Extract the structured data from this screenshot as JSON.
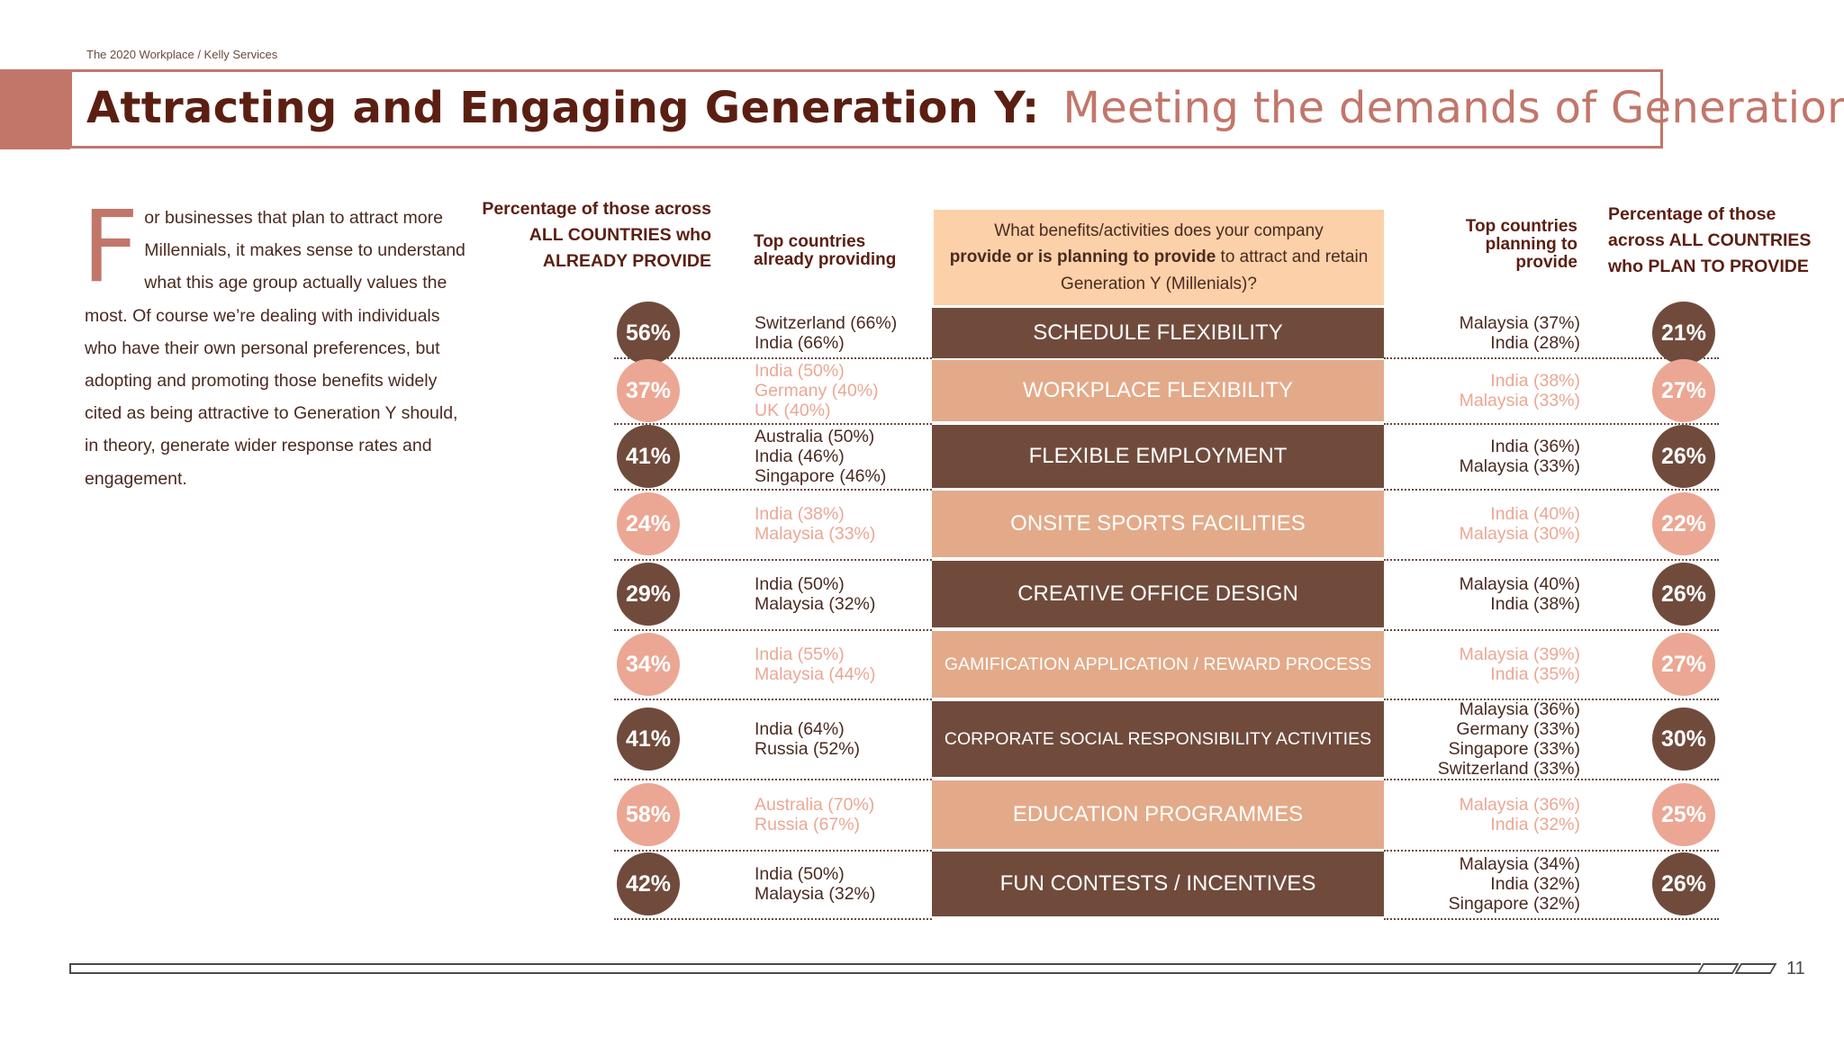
{
  "breadcrumb": "The 2020 Workplace  / Kelly Services",
  "header": {
    "title": "Attracting and Engaging Generation Y:",
    "subtitle": "Meeting the demands of Generation Y"
  },
  "intro": {
    "dropcap": "F",
    "text": "or businesses that plan to attract more Millennials, it makes sense to understand what this age group actually values the most. Of course we’re dealing with individuals who have their own personal preferences, but adopting and promoting those benefits widely cited as being attractive to Generation Y should, in theory, generate wider response rates and engagement."
  },
  "columns": {
    "already_pct": [
      "Percentage of those across",
      "ALL COUNTRIES  who",
      "ALREADY PROVIDE"
    ],
    "already_countries": [
      "Top countries",
      "already providing"
    ],
    "question": {
      "pre": "What benefits/activities does your company",
      "bold": "provide or is planning to provide",
      "post": " to attract and retain Generation Y (Millenials)?"
    },
    "plan_countries": [
      "Top countries",
      "planning to",
      "provide"
    ],
    "plan_pct": [
      "Percentage of those",
      "across ALL COUNTRIES",
      "who PLAN TO PROVIDE"
    ]
  },
  "colors": {
    "dark": "#704b3c",
    "light": "#e3aa89",
    "circle_light": "#eba794",
    "accent": "#c2766a",
    "question_bg": "#fcd0a8"
  },
  "rows": [
    {
      "benefit": "SCHEDULE FLEXIBILITY",
      "tone": "dark",
      "already": "56%",
      "already_countries": [
        "Switzerland (66%)",
        "India (66%)"
      ],
      "plan": "21%",
      "plan_countries": [
        "Malaysia (37%)",
        "India (28%)"
      ]
    },
    {
      "benefit": "WORKPLACE FLEXIBILITY",
      "tone": "light",
      "already": "37%",
      "already_countries": [
        "India (50%)",
        "Germany (40%)",
        "UK (40%)"
      ],
      "plan": "27%",
      "plan_countries": [
        "India (38%)",
        "Malaysia (33%)"
      ]
    },
    {
      "benefit": "FLEXIBLE EMPLOYMENT",
      "tone": "dark",
      "already": "41%",
      "already_countries": [
        "Australia (50%)",
        "India (46%)",
        "Singapore (46%)"
      ],
      "plan": "26%",
      "plan_countries": [
        "India (36%)",
        "Malaysia (33%)"
      ]
    },
    {
      "benefit": "ONSITE SPORTS FACILITIES",
      "tone": "light",
      "already": "24%",
      "already_countries": [
        "India (38%)",
        "Malaysia (33%)"
      ],
      "plan": "22%",
      "plan_countries": [
        "India (40%)",
        "Malaysia (30%)"
      ]
    },
    {
      "benefit": "CREATIVE OFFICE DESIGN",
      "tone": "dark",
      "already": "29%",
      "already_countries": [
        "India (50%)",
        "Malaysia (32%)"
      ],
      "plan": "26%",
      "plan_countries": [
        "Malaysia (40%)",
        "India (38%)"
      ]
    },
    {
      "benefit": "GAMIFICATION APPLICATION / REWARD PROCESS",
      "tone": "light",
      "already": "34%",
      "already_countries": [
        "India (55%)",
        "Malaysia (44%)"
      ],
      "plan": "27%",
      "plan_countries": [
        "Malaysia (39%)",
        "India (35%)"
      ]
    },
    {
      "benefit": "CORPORATE SOCIAL RESPONSIBILITY ACTIVITIES",
      "tone": "dark",
      "already": "41%",
      "already_countries": [
        "India (64%)",
        "Russia (52%)"
      ],
      "plan": "30%",
      "plan_countries": [
        "Malaysia (36%)",
        "Germany (33%)",
        "Singapore (33%)",
        "Switzerland (33%)"
      ]
    },
    {
      "benefit": "EDUCATION PROGRAMMES",
      "tone": "light",
      "already": "58%",
      "already_countries": [
        "Australia (70%)",
        "Russia (67%)"
      ],
      "plan": "25%",
      "plan_countries": [
        "Malaysia (36%)",
        "India (32%)"
      ]
    },
    {
      "benefit": "FUN CONTESTS / INCENTIVES",
      "tone": "dark",
      "already": "42%",
      "already_countries": [
        "India (50%)",
        "Malaysia (32%)"
      ],
      "plan": "26%",
      "plan_countries": [
        "Malaysia (34%)",
        "India (32%)",
        "Singapore (32%)"
      ]
    }
  ],
  "page_number": "11"
}
